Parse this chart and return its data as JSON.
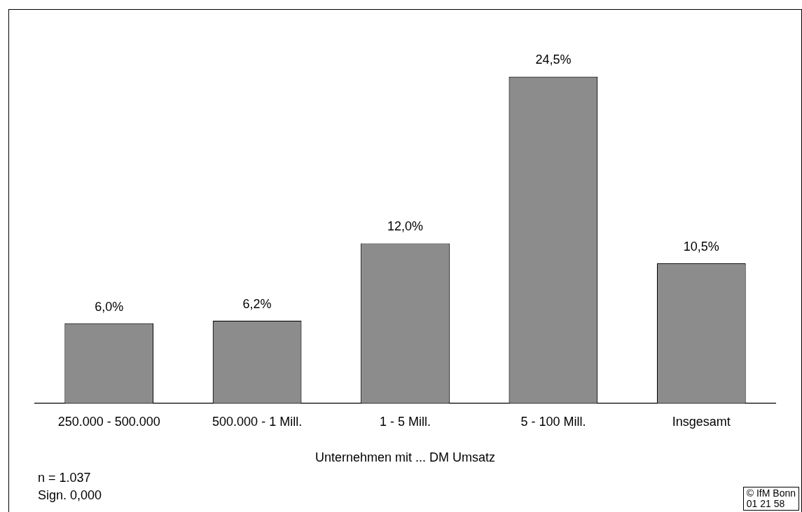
{
  "chart_data": {
    "type": "bar",
    "categories": [
      "250.000 - 500.000",
      "500.000 - 1 Mill.",
      "1 - 5 Mill.",
      "5 - 100 Mill.",
      "Insgesamt"
    ],
    "values": [
      6.0,
      6.2,
      12.0,
      24.5,
      10.5
    ],
    "value_labels": [
      "6,0%",
      "6,2%",
      "12,0%",
      "24,5%",
      "10,5%"
    ],
    "color": "#8c8c8c",
    "xlabel": "Unternehmen mit ... DM Umsatz",
    "annotations": [
      "n = 1.037",
      "Sign. 0,000",
      "© IfM Bonn",
      "01  21  58"
    ],
    "grid": false,
    "legend": false
  }
}
